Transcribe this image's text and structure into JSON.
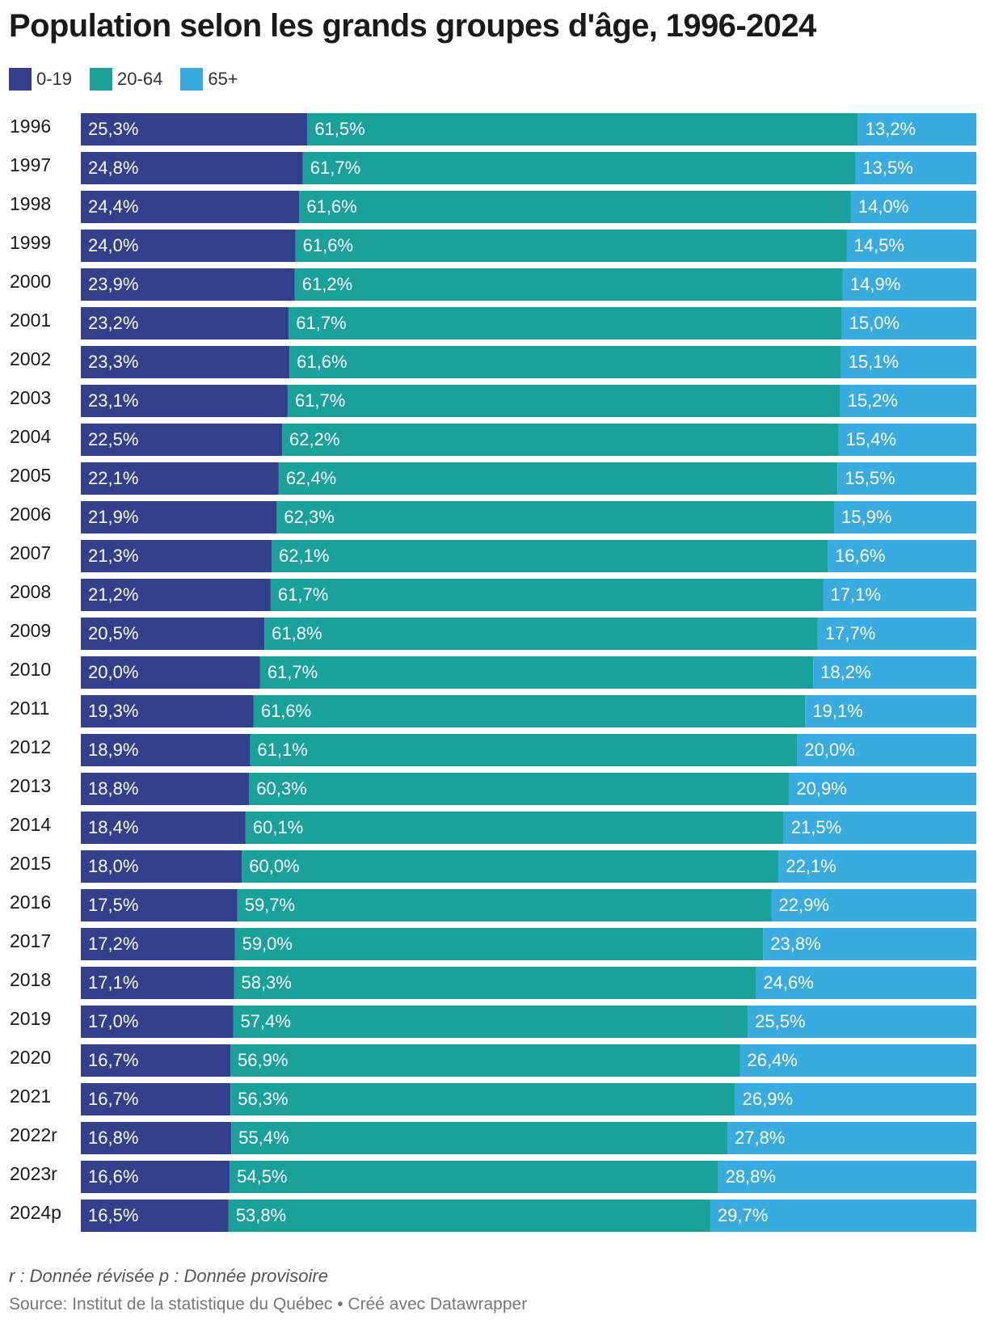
{
  "title": "Population selon les grands groupes d'âge, 1996-2024",
  "note": "r : Donnée révisée p : Donnée provisoire",
  "source": "Source: Institut de la statistique du Québec • Créé avec Datawrapper",
  "legend": [
    {
      "label": "0-19",
      "color": "#333f8c"
    },
    {
      "label": "20-64",
      "color": "#19a29a"
    },
    {
      "label": "65+",
      "color": "#38abe1"
    }
  ],
  "chart_data": {
    "type": "bar",
    "orientation": "horizontal",
    "stacked": true,
    "normalized": true,
    "title": "Population selon les grands groupes d'âge, 1996-2024",
    "legend_position": "top-left",
    "grid": false,
    "categories": [
      "1996",
      "1997",
      "1998",
      "1999",
      "2000",
      "2001",
      "2002",
      "2003",
      "2004",
      "2005",
      "2006",
      "2007",
      "2008",
      "2009",
      "2010",
      "2011",
      "2012",
      "2013",
      "2014",
      "2015",
      "2016",
      "2017",
      "2018",
      "2019",
      "2020",
      "2021",
      "2022r",
      "2023r",
      "2024p"
    ],
    "series": [
      {
        "name": "0-19",
        "color": "#333f8c",
        "values": [
          25.3,
          24.8,
          24.4,
          24.0,
          23.9,
          23.2,
          23.3,
          23.1,
          22.5,
          22.1,
          21.9,
          21.3,
          21.2,
          20.5,
          20.0,
          19.3,
          18.9,
          18.8,
          18.4,
          18.0,
          17.5,
          17.2,
          17.1,
          17.0,
          16.7,
          16.7,
          16.8,
          16.6,
          16.5
        ],
        "labels": [
          "25,3%",
          "24,8%",
          "24,4%",
          "24,0%",
          "23,9%",
          "23,2%",
          "23,3%",
          "23,1%",
          "22,5%",
          "22,1%",
          "21,9%",
          "21,3%",
          "21,2%",
          "20,5%",
          "20,0%",
          "19,3%",
          "18,9%",
          "18,8%",
          "18,4%",
          "18,0%",
          "17,5%",
          "17,2%",
          "17,1%",
          "17,0%",
          "16,7%",
          "16,7%",
          "16,8%",
          "16,6%",
          "16,5%"
        ]
      },
      {
        "name": "20-64",
        "color": "#19a29a",
        "values": [
          61.5,
          61.7,
          61.6,
          61.6,
          61.2,
          61.7,
          61.6,
          61.7,
          62.2,
          62.4,
          62.3,
          62.1,
          61.7,
          61.8,
          61.7,
          61.6,
          61.1,
          60.3,
          60.1,
          60.0,
          59.7,
          59.0,
          58.3,
          57.4,
          56.9,
          56.3,
          55.4,
          54.5,
          53.8
        ],
        "labels": [
          "61,5%",
          "61,7%",
          "61,6%",
          "61,6%",
          "61,2%",
          "61,7%",
          "61,6%",
          "61,7%",
          "62,2%",
          "62,4%",
          "62,3%",
          "62,1%",
          "61,7%",
          "61,8%",
          "61,7%",
          "61,6%",
          "61,1%",
          "60,3%",
          "60,1%",
          "60,0%",
          "59,7%",
          "59,0%",
          "58,3%",
          "57,4%",
          "56,9%",
          "56,3%",
          "55,4%",
          "54,5%",
          "53,8%"
        ]
      },
      {
        "name": "65+",
        "color": "#38abe1",
        "values": [
          13.2,
          13.5,
          14.0,
          14.5,
          14.9,
          15.0,
          15.1,
          15.2,
          15.4,
          15.5,
          15.9,
          16.6,
          17.1,
          17.7,
          18.2,
          19.1,
          20.0,
          20.9,
          21.5,
          22.1,
          22.9,
          23.8,
          24.6,
          25.5,
          26.4,
          26.9,
          27.8,
          28.8,
          29.7
        ],
        "labels": [
          "13,2%",
          "13,5%",
          "14,0%",
          "14,5%",
          "14,9%",
          "15,0%",
          "15,1%",
          "15,2%",
          "15,4%",
          "15,5%",
          "15,9%",
          "16,6%",
          "17,1%",
          "17,7%",
          "18,2%",
          "19,1%",
          "20,0%",
          "20,9%",
          "21,5%",
          "22,1%",
          "22,9%",
          "23,8%",
          "24,6%",
          "25,5%",
          "26,4%",
          "26,9%",
          "27,8%",
          "28,8%",
          "29,7%"
        ]
      }
    ]
  }
}
